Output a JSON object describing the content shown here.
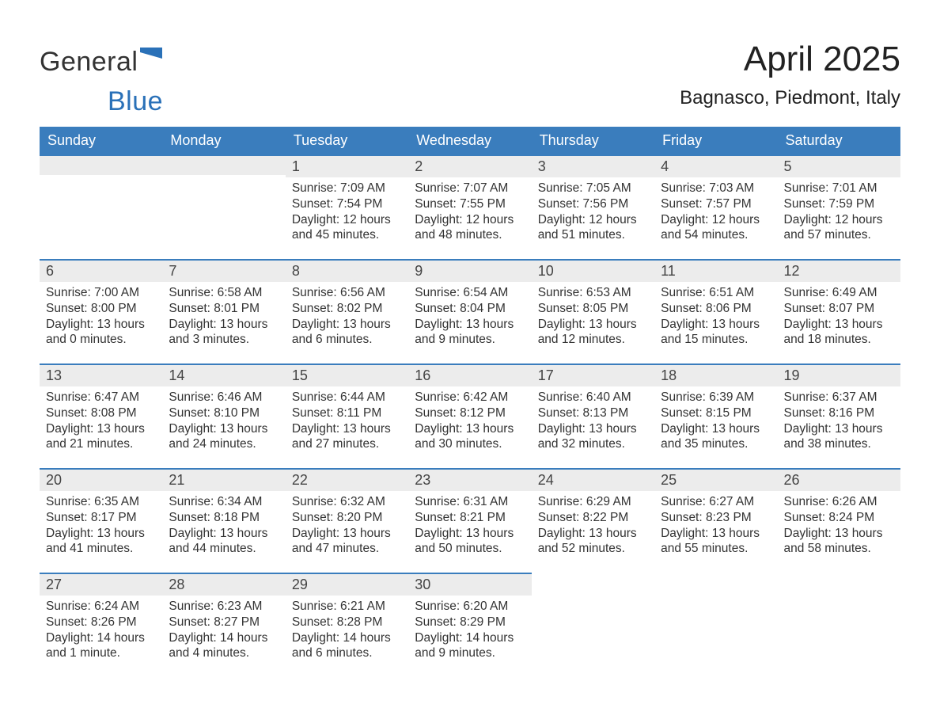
{
  "brand": {
    "word1": "General",
    "word2": "Blue",
    "color_primary": "#2a71b8",
    "color_dark": "#333333",
    "flag_color": "#2a71b8"
  },
  "header": {
    "month_title": "April 2025",
    "location": "Bagnasco, Piedmont, Italy"
  },
  "theme": {
    "header_bg": "#3a7dbd",
    "header_text": "#ffffff",
    "daynum_bg": "#ececec",
    "row_divider": "#3a7dbd",
    "body_text": "#333333",
    "page_bg": "#ffffff",
    "font_family": "Arial",
    "th_fontsize": 18,
    "title_fontsize": 44,
    "location_fontsize": 24,
    "cell_fontsize": 15.5
  },
  "calendar": {
    "type": "table",
    "columns": [
      "Sunday",
      "Monday",
      "Tuesday",
      "Wednesday",
      "Thursday",
      "Friday",
      "Saturday"
    ],
    "weeks": [
      [
        null,
        null,
        {
          "n": "1",
          "sunrise": "7:09 AM",
          "sunset": "7:54 PM",
          "daylight": "12 hours and 45 minutes."
        },
        {
          "n": "2",
          "sunrise": "7:07 AM",
          "sunset": "7:55 PM",
          "daylight": "12 hours and 48 minutes."
        },
        {
          "n": "3",
          "sunrise": "7:05 AM",
          "sunset": "7:56 PM",
          "daylight": "12 hours and 51 minutes."
        },
        {
          "n": "4",
          "sunrise": "7:03 AM",
          "sunset": "7:57 PM",
          "daylight": "12 hours and 54 minutes."
        },
        {
          "n": "5",
          "sunrise": "7:01 AM",
          "sunset": "7:59 PM",
          "daylight": "12 hours and 57 minutes."
        }
      ],
      [
        {
          "n": "6",
          "sunrise": "7:00 AM",
          "sunset": "8:00 PM",
          "daylight": "13 hours and 0 minutes."
        },
        {
          "n": "7",
          "sunrise": "6:58 AM",
          "sunset": "8:01 PM",
          "daylight": "13 hours and 3 minutes."
        },
        {
          "n": "8",
          "sunrise": "6:56 AM",
          "sunset": "8:02 PM",
          "daylight": "13 hours and 6 minutes."
        },
        {
          "n": "9",
          "sunrise": "6:54 AM",
          "sunset": "8:04 PM",
          "daylight": "13 hours and 9 minutes."
        },
        {
          "n": "10",
          "sunrise": "6:53 AM",
          "sunset": "8:05 PM",
          "daylight": "13 hours and 12 minutes."
        },
        {
          "n": "11",
          "sunrise": "6:51 AM",
          "sunset": "8:06 PM",
          "daylight": "13 hours and 15 minutes."
        },
        {
          "n": "12",
          "sunrise": "6:49 AM",
          "sunset": "8:07 PM",
          "daylight": "13 hours and 18 minutes."
        }
      ],
      [
        {
          "n": "13",
          "sunrise": "6:47 AM",
          "sunset": "8:08 PM",
          "daylight": "13 hours and 21 minutes."
        },
        {
          "n": "14",
          "sunrise": "6:46 AM",
          "sunset": "8:10 PM",
          "daylight": "13 hours and 24 minutes."
        },
        {
          "n": "15",
          "sunrise": "6:44 AM",
          "sunset": "8:11 PM",
          "daylight": "13 hours and 27 minutes."
        },
        {
          "n": "16",
          "sunrise": "6:42 AM",
          "sunset": "8:12 PM",
          "daylight": "13 hours and 30 minutes."
        },
        {
          "n": "17",
          "sunrise": "6:40 AM",
          "sunset": "8:13 PM",
          "daylight": "13 hours and 32 minutes."
        },
        {
          "n": "18",
          "sunrise": "6:39 AM",
          "sunset": "8:15 PM",
          "daylight": "13 hours and 35 minutes."
        },
        {
          "n": "19",
          "sunrise": "6:37 AM",
          "sunset": "8:16 PM",
          "daylight": "13 hours and 38 minutes."
        }
      ],
      [
        {
          "n": "20",
          "sunrise": "6:35 AM",
          "sunset": "8:17 PM",
          "daylight": "13 hours and 41 minutes."
        },
        {
          "n": "21",
          "sunrise": "6:34 AM",
          "sunset": "8:18 PM",
          "daylight": "13 hours and 44 minutes."
        },
        {
          "n": "22",
          "sunrise": "6:32 AM",
          "sunset": "8:20 PM",
          "daylight": "13 hours and 47 minutes."
        },
        {
          "n": "23",
          "sunrise": "6:31 AM",
          "sunset": "8:21 PM",
          "daylight": "13 hours and 50 minutes."
        },
        {
          "n": "24",
          "sunrise": "6:29 AM",
          "sunset": "8:22 PM",
          "daylight": "13 hours and 52 minutes."
        },
        {
          "n": "25",
          "sunrise": "6:27 AM",
          "sunset": "8:23 PM",
          "daylight": "13 hours and 55 minutes."
        },
        {
          "n": "26",
          "sunrise": "6:26 AM",
          "sunset": "8:24 PM",
          "daylight": "13 hours and 58 minutes."
        }
      ],
      [
        {
          "n": "27",
          "sunrise": "6:24 AM",
          "sunset": "8:26 PM",
          "daylight": "14 hours and 1 minute."
        },
        {
          "n": "28",
          "sunrise": "6:23 AM",
          "sunset": "8:27 PM",
          "daylight": "14 hours and 4 minutes."
        },
        {
          "n": "29",
          "sunrise": "6:21 AM",
          "sunset": "8:28 PM",
          "daylight": "14 hours and 6 minutes."
        },
        {
          "n": "30",
          "sunrise": "6:20 AM",
          "sunset": "8:29 PM",
          "daylight": "14 hours and 9 minutes."
        },
        null,
        null,
        null
      ]
    ],
    "labels": {
      "sunrise_prefix": "Sunrise: ",
      "sunset_prefix": "Sunset: ",
      "daylight_prefix": "Daylight: "
    }
  }
}
